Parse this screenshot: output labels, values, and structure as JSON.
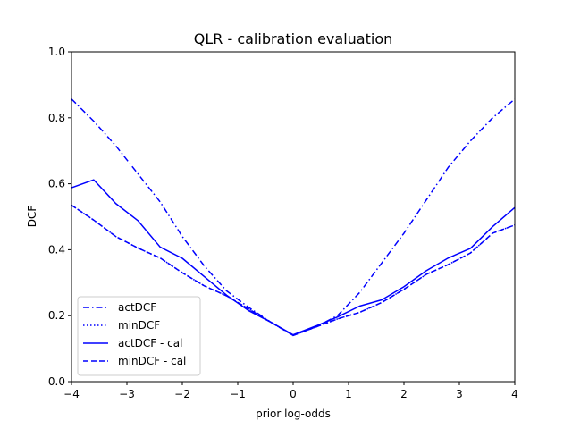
{
  "chart_data": {
    "type": "line",
    "title": "QLR - calibration evaluation",
    "xlabel": "prior log-odds",
    "ylabel": "DCF",
    "xlim": [
      -4,
      4
    ],
    "ylim": [
      0.0,
      1.0
    ],
    "xticks": [
      "−4",
      "−3",
      "−2",
      "−1",
      "0",
      "1",
      "2",
      "3",
      "4"
    ],
    "yticks": [
      "0.0",
      "0.2",
      "0.4",
      "0.6",
      "0.8",
      "1.0"
    ],
    "grid": false,
    "legend_position": "lower-left",
    "x": [
      -4.0,
      -3.6,
      -3.2,
      -2.8,
      -2.4,
      -2.0,
      -1.6,
      -1.2,
      -0.8,
      -0.4,
      0.0,
      0.4,
      0.8,
      1.2,
      1.6,
      2.0,
      2.4,
      2.8,
      3.2,
      3.6,
      4.0
    ],
    "series": [
      {
        "name": "actDCF",
        "color": "#0000ff",
        "dash": "dashdot",
        "values": [
          0.857,
          0.79,
          0.715,
          0.63,
          0.545,
          0.44,
          0.35,
          0.275,
          0.225,
          0.18,
          0.14,
          0.165,
          0.2,
          0.27,
          0.36,
          0.45,
          0.55,
          0.65,
          0.73,
          0.8,
          0.857
        ]
      },
      {
        "name": "minDCF",
        "color": "#0000ff",
        "dash": "dotted",
        "values": [
          0.535,
          0.49,
          0.44,
          0.405,
          0.375,
          0.33,
          0.29,
          0.26,
          0.22,
          0.18,
          0.14,
          0.165,
          0.19,
          0.21,
          0.24,
          0.28,
          0.325,
          0.355,
          0.39,
          0.45,
          0.475
        ]
      },
      {
        "name": "actDCF - cal",
        "color": "#0000ff",
        "dash": "solid",
        "values": [
          0.588,
          0.612,
          0.54,
          0.488,
          0.408,
          0.374,
          0.318,
          0.262,
          0.215,
          0.18,
          0.142,
          0.168,
          0.196,
          0.229,
          0.248,
          0.288,
          0.336,
          0.375,
          0.404,
          0.47,
          0.528
        ]
      },
      {
        "name": "minDCF - cal",
        "color": "#0000ff",
        "dash": "dashed",
        "values": [
          0.535,
          0.49,
          0.44,
          0.405,
          0.375,
          0.33,
          0.29,
          0.26,
          0.22,
          0.18,
          0.14,
          0.165,
          0.19,
          0.21,
          0.24,
          0.28,
          0.325,
          0.355,
          0.39,
          0.45,
          0.475
        ]
      }
    ]
  }
}
